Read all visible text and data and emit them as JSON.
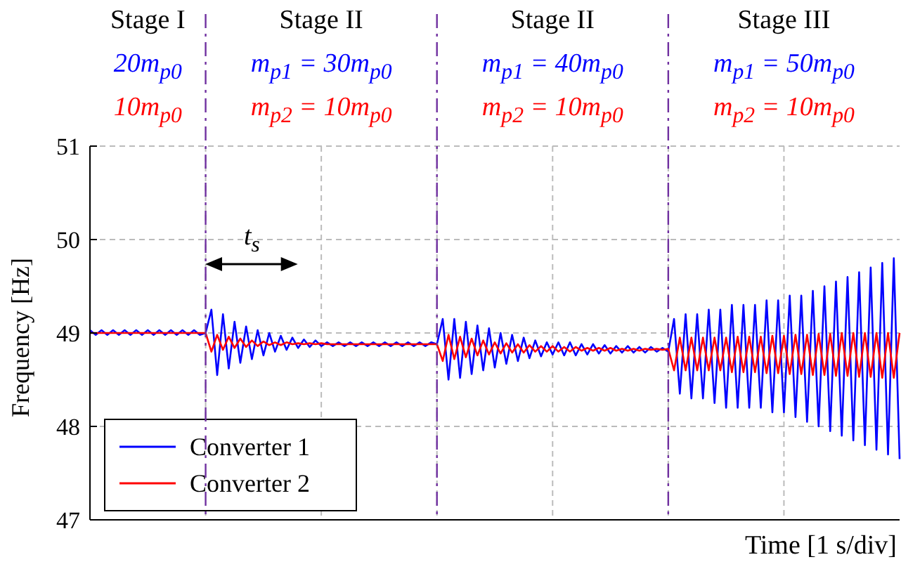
{
  "chart_data": {
    "type": "line",
    "xlabel": "Time [1 s/div]",
    "ylabel": "Frequency [Hz]",
    "annotations": [
      "Stage I",
      "20m$_{p0}$",
      "10m$_{p0}$",
      "Stage II",
      "m$_{p1}$ = 30m$_{p0}$",
      "m$_{p2}$ = 10m$_{p0}$",
      "Stage II",
      "m$_{p1}$ = 40m$_{p0}$",
      "m$_{p2}$ = 10m$_{p0}$",
      "Stage III",
      "m$_{p1}$ = 50m$_{p0}$",
      "m$_{p2}$ = 10m$_{p0}$",
      "t$_{s}$"
    ],
    "categories": [
      null,
      null,
      null,
      null,
      null,
      null,
      null,
      null,
      null,
      null,
      null,
      null,
      null,
      null,
      null,
      null,
      null,
      null,
      null,
      null,
      null,
      null,
      null,
      null,
      null,
      null,
      null,
      null,
      null,
      null,
      null,
      null,
      null,
      null,
      null,
      null,
      null,
      null,
      null,
      null,
      null,
      null,
      null,
      null,
      null,
      null,
      null,
      null,
      null,
      null,
      null,
      null,
      null,
      null,
      null,
      null,
      null,
      null,
      null,
      null,
      null,
      null,
      null,
      null,
      null,
      null,
      null,
      null,
      null,
      null,
      null,
      null,
      null,
      null,
      null,
      null,
      null,
      null,
      null,
      null,
      null,
      null,
      null,
      null,
      null,
      null,
      null,
      null,
      null,
      null,
      null,
      null,
      null,
      null,
      null,
      null,
      null,
      null,
      null,
      null,
      null,
      null,
      null,
      null,
      null,
      null,
      null,
      null,
      null,
      null,
      null,
      null,
      null,
      null,
      null,
      null,
      null,
      null,
      null,
      null,
      null,
      null,
      null,
      null,
      null,
      null,
      null,
      null,
      null,
      null,
      null,
      null,
      null,
      null,
      null,
      null,
      null,
      null,
      null,
      null,
      null
    ],
    "series": [
      {
        "name": "Converter 1",
        "color": "#0000ff",
        "values": [
          49.03,
          48.98,
          49.03,
          48.98,
          49.03,
          48.98,
          49.03,
          48.98,
          49.03,
          48.98,
          49.03,
          48.98,
          49.03,
          48.98,
          49.03,
          48.98,
          49.03,
          48.98,
          49.03,
          48.98,
          49.0,
          49.25,
          48.55,
          49.2,
          48.62,
          49.12,
          48.68,
          49.07,
          48.72,
          49.03,
          48.76,
          49.0,
          48.8,
          48.97,
          48.82,
          48.95,
          48.84,
          48.93,
          48.85,
          48.92,
          48.86,
          48.9,
          48.86,
          48.9,
          48.86,
          48.9,
          48.86,
          48.9,
          48.86,
          48.9,
          48.86,
          48.9,
          48.86,
          48.9,
          48.86,
          48.9,
          48.86,
          48.9,
          48.86,
          48.9,
          48.88,
          49.15,
          48.5,
          49.15,
          48.52,
          49.12,
          48.56,
          49.08,
          48.6,
          49.05,
          48.63,
          49.0,
          48.67,
          48.98,
          48.7,
          48.95,
          48.73,
          48.92,
          48.75,
          48.9,
          48.77,
          48.9,
          48.76,
          48.9,
          48.76,
          48.88,
          48.77,
          48.88,
          48.78,
          48.87,
          48.78,
          48.86,
          48.79,
          48.86,
          48.79,
          48.85,
          48.79,
          48.85,
          48.8,
          48.84,
          48.8,
          49.15,
          48.35,
          49.2,
          48.3,
          49.2,
          48.3,
          49.25,
          48.25,
          49.25,
          48.2,
          49.3,
          48.2,
          49.3,
          48.2,
          49.3,
          48.2,
          49.35,
          48.15,
          49.35,
          48.15,
          49.4,
          48.1,
          49.4,
          48.05,
          49.45,
          48.0,
          49.5,
          47.95,
          49.55,
          47.9,
          49.6,
          47.85,
          49.65,
          47.8,
          49.7,
          47.75,
          49.75,
          47.7,
          49.8,
          47.65
        ]
      },
      {
        "name": "Converter 2",
        "color": "#ff0000",
        "values": [
          49.0,
          49.0,
          49.0,
          49.0,
          49.0,
          49.0,
          49.0,
          49.0,
          49.0,
          49.0,
          49.0,
          49.0,
          49.0,
          49.0,
          49.0,
          49.0,
          49.0,
          49.0,
          49.0,
          49.0,
          49.0,
          48.8,
          48.98,
          48.82,
          48.96,
          48.84,
          48.94,
          48.85,
          48.92,
          48.86,
          48.91,
          48.87,
          48.9,
          48.87,
          48.9,
          48.88,
          48.89,
          48.88,
          48.89,
          48.88,
          48.89,
          48.88,
          48.88,
          48.88,
          48.88,
          48.88,
          48.88,
          48.88,
          48.88,
          48.88,
          48.88,
          48.88,
          48.88,
          48.88,
          48.88,
          48.88,
          48.88,
          48.88,
          48.88,
          48.88,
          48.88,
          48.7,
          48.98,
          48.72,
          48.96,
          48.74,
          48.94,
          48.76,
          48.92,
          48.77,
          48.9,
          48.78,
          48.89,
          48.79,
          48.88,
          48.79,
          48.87,
          48.8,
          48.86,
          48.8,
          48.86,
          48.8,
          48.85,
          48.8,
          48.85,
          48.81,
          48.84,
          48.81,
          48.84,
          48.81,
          48.84,
          48.81,
          48.83,
          48.81,
          48.83,
          48.81,
          48.83,
          48.82,
          48.83,
          48.82,
          48.83,
          48.6,
          48.95,
          48.6,
          48.95,
          48.6,
          48.95,
          48.6,
          48.95,
          48.6,
          48.95,
          48.58,
          48.96,
          48.58,
          48.96,
          48.58,
          48.96,
          48.57,
          48.97,
          48.57,
          48.97,
          48.56,
          48.98,
          48.56,
          48.98,
          48.55,
          48.99,
          48.55,
          48.99,
          48.54,
          49.0,
          48.54,
          49.0,
          48.53,
          49.0,
          48.53,
          49.0,
          48.52,
          49.0,
          48.52,
          49.0
        ]
      }
    ],
    "ylim": [
      47,
      51
    ],
    "yticks": [
      47,
      48,
      49,
      50,
      51
    ],
    "tick_labels": "y",
    "grid": true,
    "legend": "bottom left",
    "marker": "none",
    "line_style": "solid"
  }
}
